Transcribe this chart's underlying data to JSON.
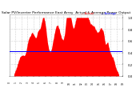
{
  "title": "Solar PV/Inverter Performance East Array  Actual & Average Power Output",
  "title_fontsize": 3.2,
  "bg_color": "#ffffff",
  "plot_bg_color": "#ffffff",
  "bar_color": "#ff0000",
  "avg_line_color": "#0000ff",
  "avg_value": 0.42,
  "ylim": [
    0,
    1.05
  ],
  "ylabel_fontsize": 2.8,
  "xlabel_fontsize": 2.2,
  "grid_color": "#aaaaaa",
  "num_points": 300,
  "peak_positions": [
    0.1,
    0.2,
    0.3,
    0.42,
    0.52,
    0.6,
    0.66,
    0.72,
    0.8,
    0.88
  ],
  "peak_heights": [
    0.3,
    0.72,
    0.95,
    0.85,
    0.88,
    0.82,
    0.78,
    0.68,
    0.55,
    0.35
  ],
  "peak_widths": [
    0.03,
    0.04,
    0.03,
    0.04,
    0.03,
    0.035,
    0.03,
    0.04,
    0.04,
    0.04
  ],
  "ytick_vals": [
    0.0,
    0.2,
    0.4,
    0.6,
    0.8,
    1.0
  ],
  "ytick_labels": [
    "0.0",
    "0.2",
    "0.4",
    "0.6",
    "0.8",
    "1.0"
  ]
}
